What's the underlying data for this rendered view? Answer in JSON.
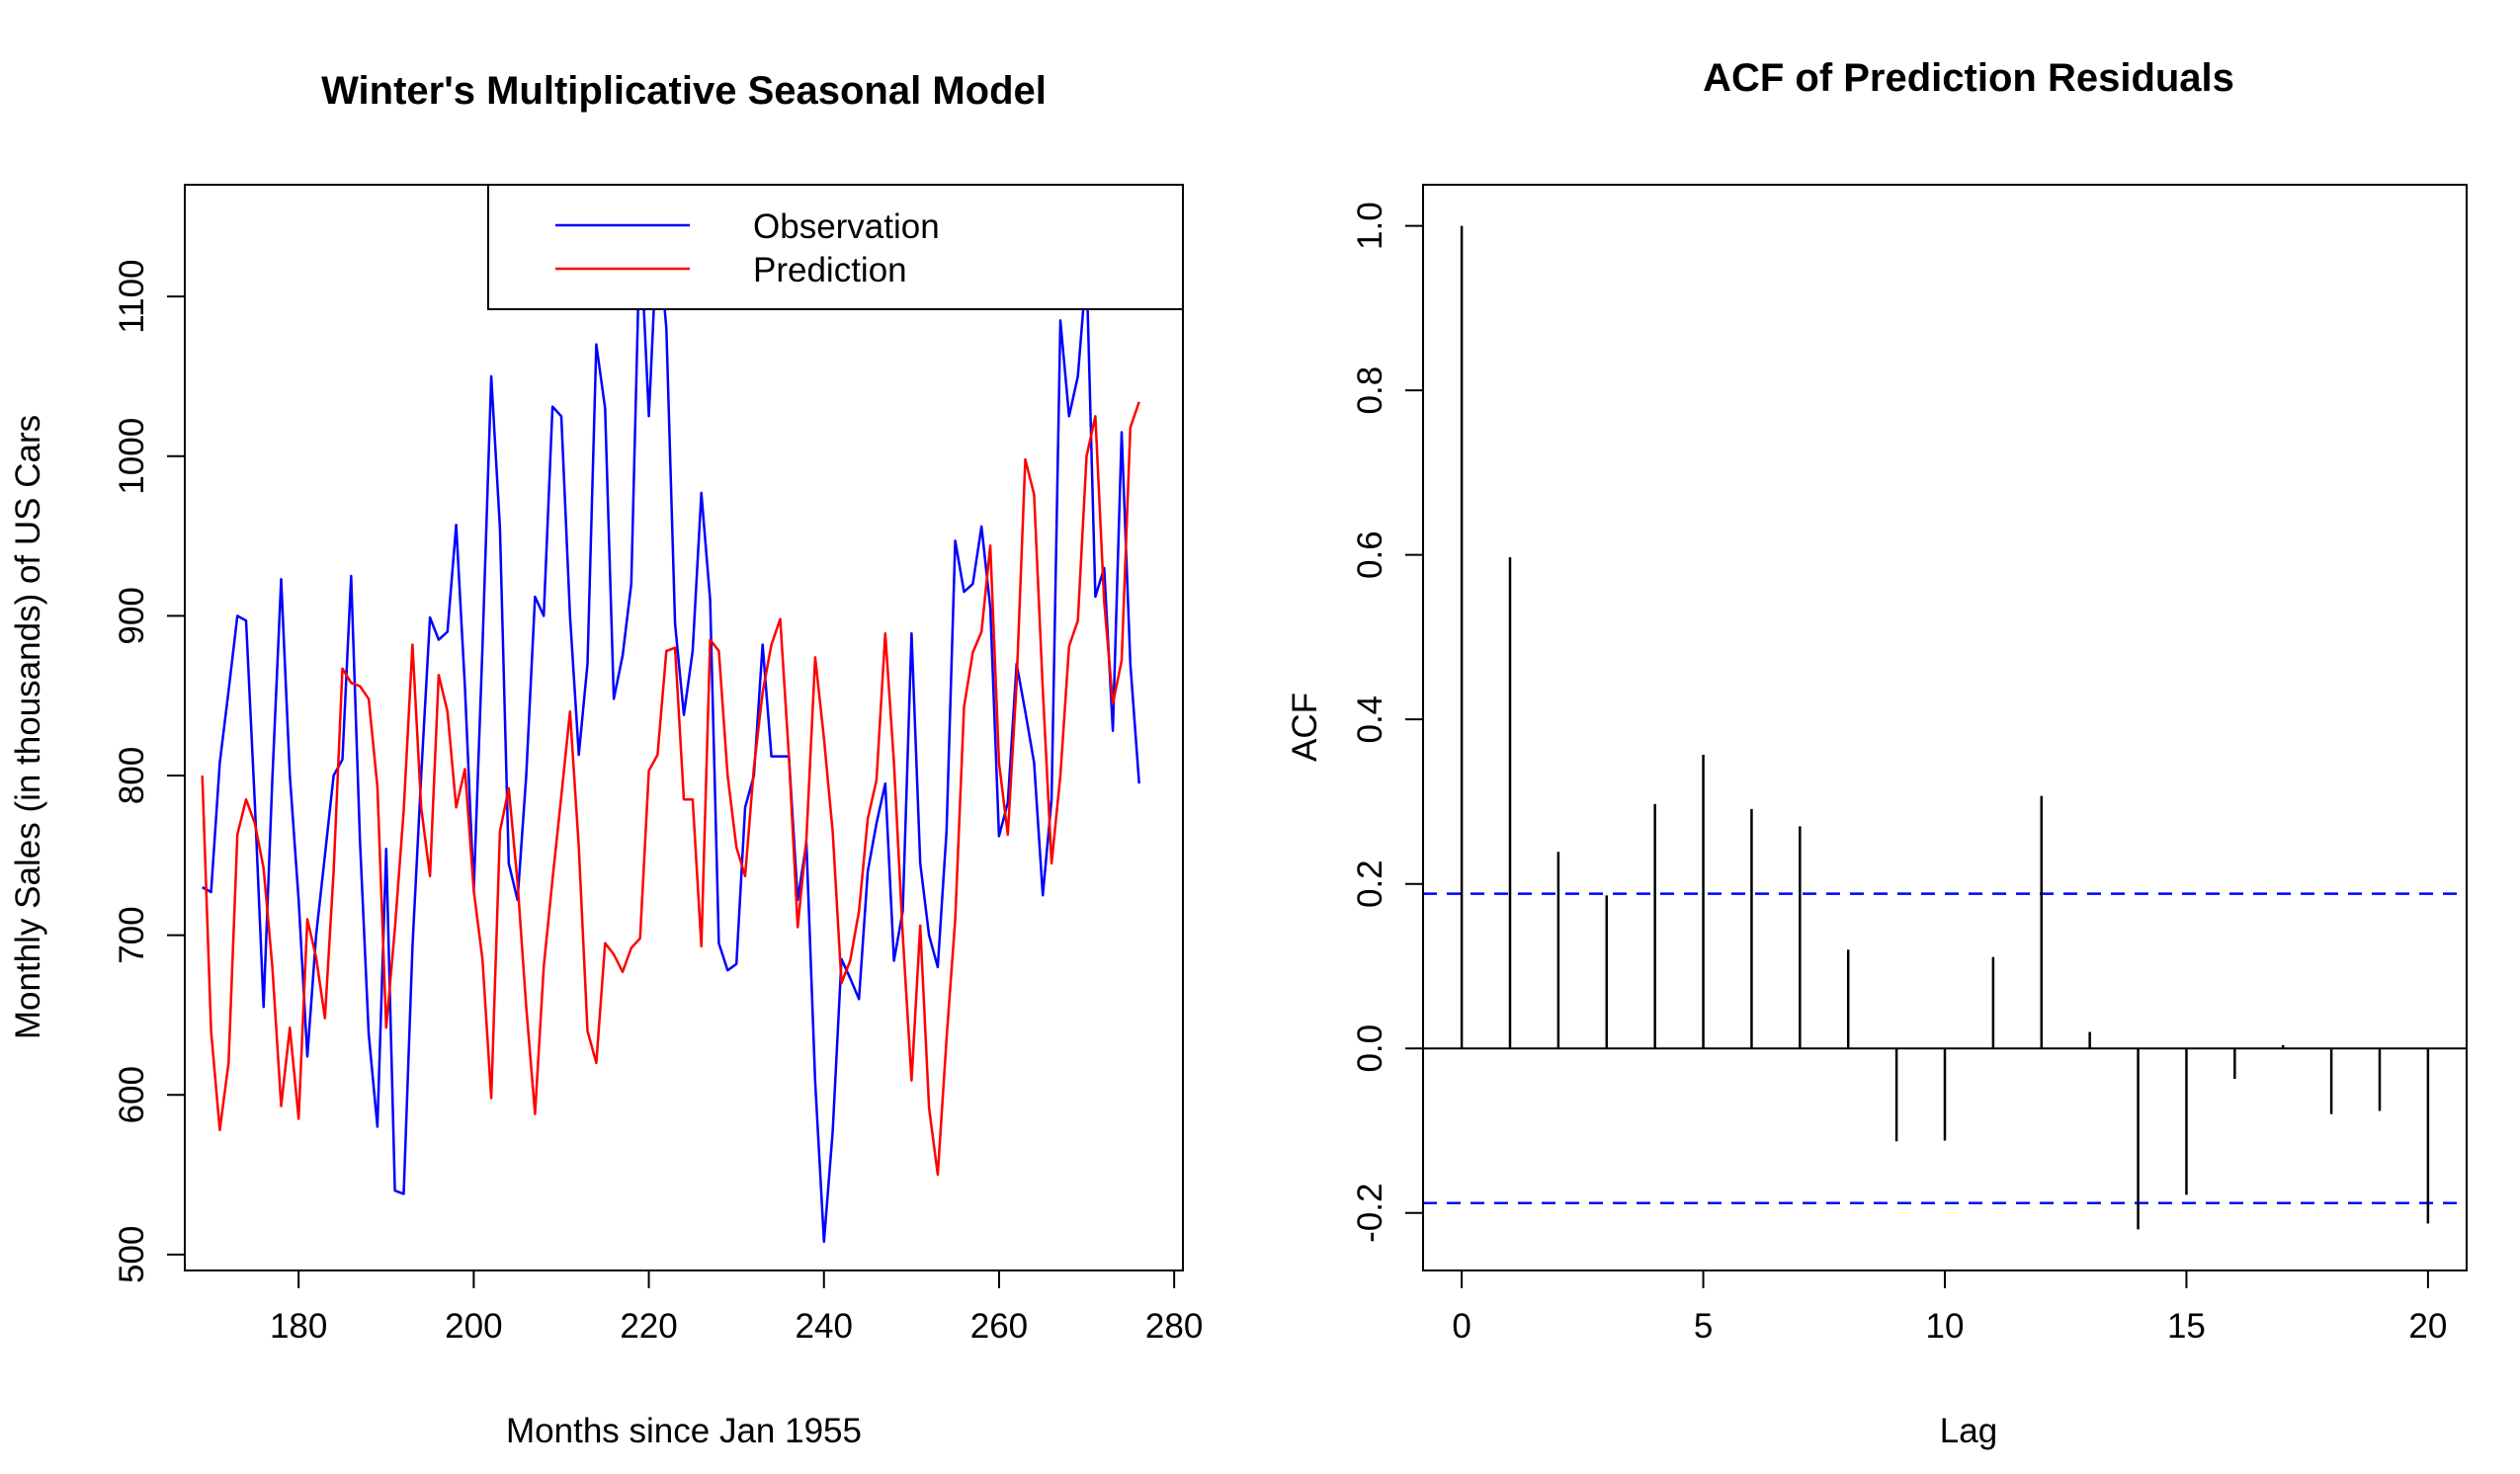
{
  "colors": {
    "observation": "#0000ff",
    "prediction": "#ff0000",
    "acf_bar": "#000000",
    "ci_line": "#0000ff",
    "axis": "#000000",
    "background": "#ffffff"
  },
  "chart_data": [
    {
      "type": "line",
      "title": "Winter's Multiplicative Seasonal Model",
      "xlabel": "Months since Jan 1955",
      "ylabel": "Monthly Sales (in thousands) of US Cars",
      "xlim": [
        167,
        281
      ],
      "ylim": [
        490,
        1170
      ],
      "xticks": [
        180,
        200,
        220,
        240,
        260,
        280
      ],
      "yticks": [
        500,
        600,
        700,
        800,
        900,
        1000,
        1100
      ],
      "legend_position": "top-right",
      "x": [
        169,
        170,
        171,
        172,
        173,
        174,
        175,
        176,
        177,
        178,
        179,
        180,
        181,
        182,
        183,
        184,
        185,
        186,
        187,
        188,
        189,
        190,
        191,
        192,
        193,
        194,
        195,
        196,
        197,
        198,
        199,
        200,
        201,
        202,
        203,
        204,
        205,
        206,
        207,
        208,
        209,
        210,
        211,
        212,
        213,
        214,
        215,
        216,
        217,
        218,
        219,
        220,
        221,
        222,
        223,
        224,
        225,
        226,
        227,
        228,
        229,
        230,
        231,
        232,
        233,
        234,
        235,
        236,
        237,
        238,
        239,
        240,
        241,
        242,
        243,
        244,
        245,
        246,
        247,
        248,
        249,
        250,
        251,
        252,
        253,
        254,
        255,
        256,
        257,
        258,
        259,
        260,
        261,
        262,
        263,
        264,
        265,
        266,
        267,
        268,
        269,
        270,
        271,
        272,
        273,
        274,
        275,
        276
      ],
      "series": [
        {
          "name": "Observation",
          "color": "#0000ff",
          "values": [
            730,
            727,
            808,
            853,
            900,
            897,
            782,
            655,
            798,
            923,
            800,
            722,
            624,
            700,
            750,
            800,
            810,
            925,
            760,
            638,
            580,
            754,
            540,
            538,
            693,
            800,
            899,
            885,
            890,
            957,
            855,
            728,
            880,
            1050,
            955,
            745,
            722,
            800,
            912,
            900,
            1031,
            1025,
            900,
            813,
            870,
            1070,
            1030,
            848,
            875,
            920,
            1143,
            1025,
            1143,
            1080,
            895,
            838,
            878,
            977,
            910,
            695,
            678,
            682,
            780,
            800,
            882,
            812,
            812,
            812,
            722,
            758,
            608,
            508,
            577,
            685,
            673,
            660,
            740,
            770,
            795,
            684,
            715,
            889,
            745,
            700,
            680,
            765,
            947,
            915,
            920,
            956,
            905,
            762,
            783,
            870,
            840,
            808,
            725,
            785,
            1085,
            1025,
            1050,
            1118,
            912,
            930,
            828,
            1015,
            870,
            795
          ]
        },
        {
          "name": "Prediction",
          "color": "#ff0000",
          "values": [
            800,
            640,
            578,
            620,
            763,
            785,
            770,
            742,
            680,
            593,
            642,
            585,
            710,
            686,
            648,
            740,
            867,
            858,
            856,
            848,
            793,
            642,
            704,
            778,
            882,
            780,
            737,
            863,
            840,
            780,
            804,
            728,
            685,
            598,
            765,
            792,
            733,
            655,
            588,
            680,
            735,
            787,
            840,
            755,
            640,
            620,
            695,
            688,
            677,
            692,
            698,
            803,
            813,
            878,
            880,
            785,
            785,
            693,
            885,
            878,
            800,
            755,
            737,
            805,
            852,
            882,
            898,
            812,
            705,
            760,
            874,
            823,
            765,
            670,
            684,
            715,
            773,
            797,
            889,
            808,
            700,
            609,
            706,
            592,
            550,
            635,
            710,
            843,
            877,
            890,
            944,
            808,
            763,
            858,
            998,
            976,
            854,
            745,
            800,
            881,
            897,
            1000,
            1025,
            909,
            845,
            872,
            1018,
            1034
          ]
        }
      ]
    },
    {
      "type": "bar",
      "title": "ACF of Prediction Residuals",
      "xlabel": "Lag",
      "ylabel": "ACF",
      "xlim": [
        -0.8,
        20.8
      ],
      "ylim": [
        -0.27,
        1.05
      ],
      "xticks": [
        0,
        5,
        10,
        15,
        20
      ],
      "yticks": [
        -0.2,
        0.0,
        0.2,
        0.4,
        0.6,
        0.8,
        1.0
      ],
      "categories": [
        0,
        1,
        2,
        3,
        4,
        5,
        6,
        7,
        8,
        9,
        10,
        11,
        12,
        13,
        14,
        15,
        16,
        17,
        18,
        19,
        20
      ],
      "values": [
        1.0,
        0.597,
        0.239,
        0.186,
        0.297,
        0.357,
        0.291,
        0.27,
        0.12,
        -0.113,
        -0.112,
        0.111,
        0.307,
        0.02,
        -0.22,
        -0.178,
        -0.037,
        0.004,
        -0.08,
        -0.076,
        -0.213
      ],
      "confidence_bounds": [
        0.188,
        -0.188
      ]
    }
  ]
}
